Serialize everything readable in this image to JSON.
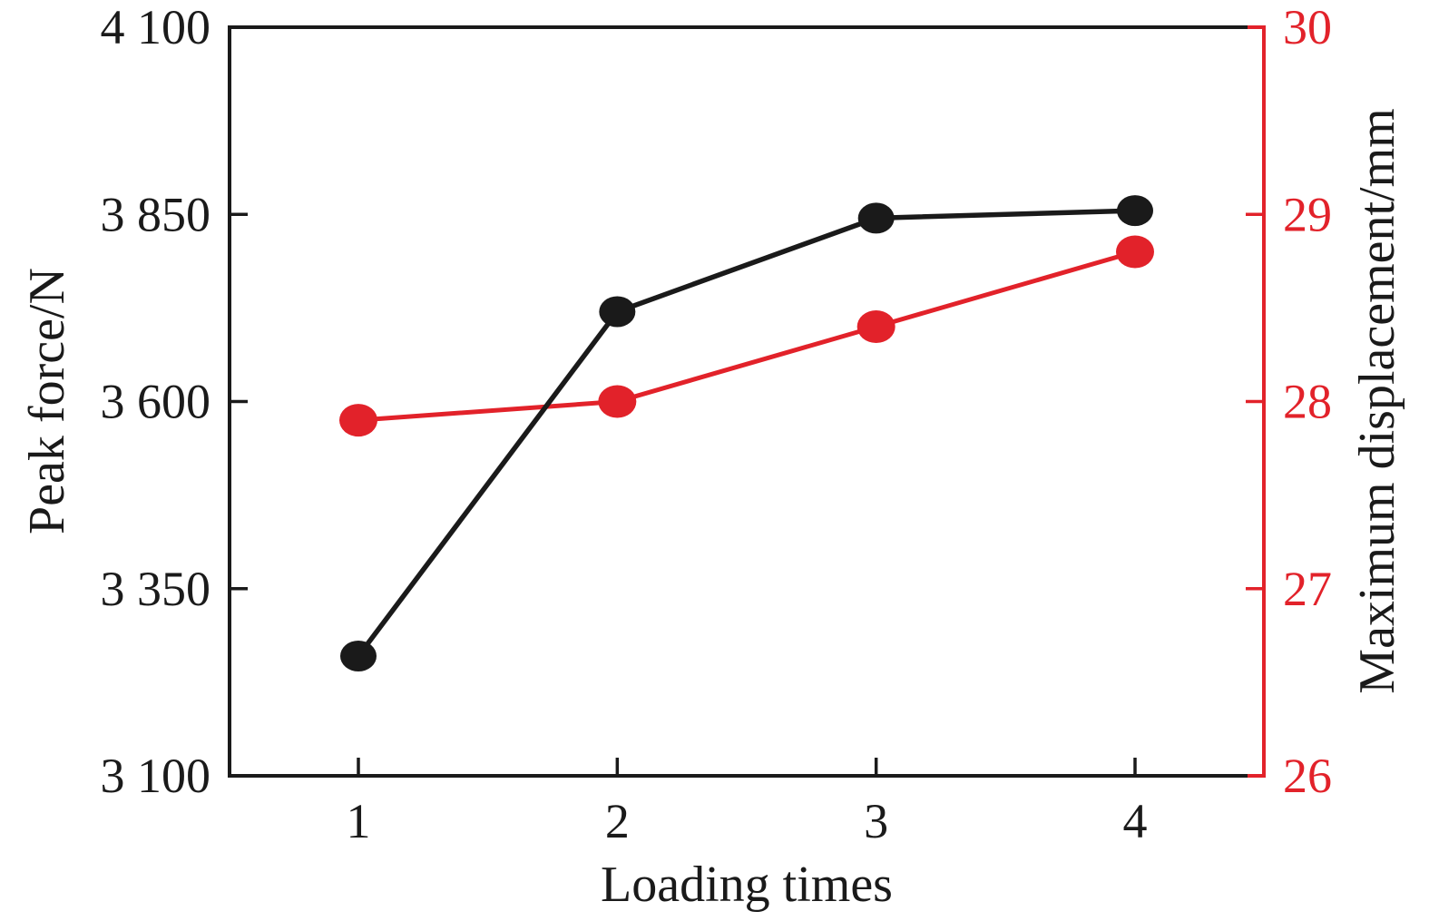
{
  "chart_data": {
    "type": "line",
    "title": "",
    "xlabel": "Loading times",
    "x": [
      1,
      2,
      3,
      4
    ],
    "x_tick_labels": [
      "1",
      "2",
      "3",
      "4"
    ],
    "grid": false,
    "legend": "none",
    "left_axis": {
      "label": "Peak force/N",
      "min": 3100,
      "max": 4100,
      "ticks": [
        3100,
        3350,
        3600,
        3850,
        4100
      ],
      "tick_labels": [
        "3 100",
        "3 350",
        "3 600",
        "3 850",
        "4 100"
      ],
      "color": "#1a1a1a"
    },
    "right_axis": {
      "label": "Maximum displacement/mm",
      "min": 26,
      "max": 30,
      "ticks": [
        26,
        27,
        28,
        29,
        30
      ],
      "tick_labels": [
        "26",
        "27",
        "28",
        "29",
        "30"
      ],
      "color": "#e2222a"
    },
    "series": [
      {
        "name": "Peak force",
        "axis": "left",
        "color": "#1a1a1a",
        "marker": "filled-circle",
        "values": [
          3260,
          3720,
          3845,
          3855
        ]
      },
      {
        "name": "Maximum displacement",
        "axis": "right",
        "color": "#e2222a",
        "marker": "filled-circle",
        "values": [
          27.9,
          28.0,
          28.4,
          28.8
        ]
      }
    ]
  }
}
